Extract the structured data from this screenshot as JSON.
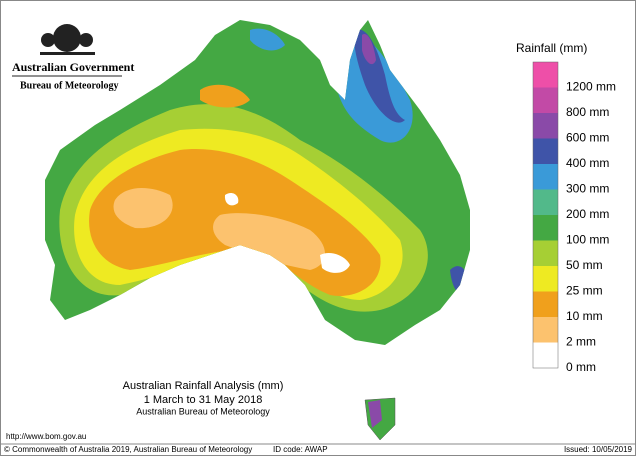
{
  "header": {
    "government": "Australian Government",
    "agency": "Bureau of Meteorology"
  },
  "legend": {
    "title": "Rainfall (mm)",
    "items": [
      {
        "label": "1200 mm",
        "color": "#ee4fa8"
      },
      {
        "label": "800 mm",
        "color": "#c24aa6"
      },
      {
        "label": "600 mm",
        "color": "#8a4aa8"
      },
      {
        "label": "400 mm",
        "color": "#3f54a8"
      },
      {
        "label": "300 mm",
        "color": "#3a9ad8"
      },
      {
        "label": "200 mm",
        "color": "#52b98a"
      },
      {
        "label": "100 mm",
        "color": "#44a843"
      },
      {
        "label": "50 mm",
        "color": "#a6cf34"
      },
      {
        "label": "25 mm",
        "color": "#eeea22"
      },
      {
        "label": "10 mm",
        "color": "#f0a01c"
      },
      {
        "label": "2 mm",
        "color": "#fcc26e"
      },
      {
        "label": "0 mm",
        "color": "#ffffff"
      }
    ]
  },
  "caption": {
    "lines": [
      "Australian Rainfall Analysis (mm)",
      "1 March to 31 May 2018",
      "Australian Bureau of Meteorology"
    ]
  },
  "url": "http://www.bom.gov.au",
  "footer": {
    "copyright": "© Commonwealth of Australia 2019, Australian Bureau of Meteorology",
    "id_code": "ID code: AWAP",
    "issued": "Issued: 10/05/2019"
  }
}
